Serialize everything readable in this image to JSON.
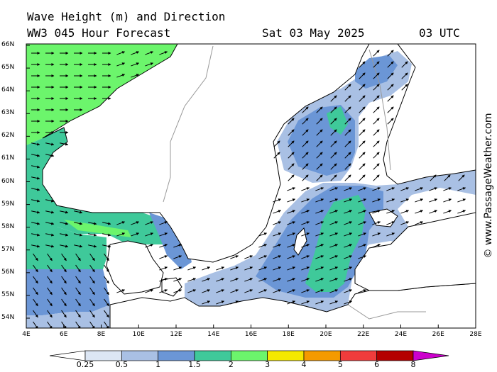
{
  "title_line1": "Wave Height (m) and Direction",
  "title_line2": "WW3 045 Hour Forecast",
  "date": "Sat 03 May 2025",
  "time": "03 UTC",
  "credit": "© www.PassageWeather.com",
  "lat_labels": [
    "66N",
    "65N",
    "64N",
    "63N",
    "62N",
    "61N",
    "60N",
    "59N",
    "58N",
    "57N",
    "56N",
    "55N",
    "54N"
  ],
  "lon_labels": [
    "4E",
    "6E",
    "8E",
    "10E",
    "12E",
    "14E",
    "16E",
    "18E",
    "20E",
    "22E",
    "24E",
    "26E",
    "28E"
  ],
  "colorbar": {
    "labels": [
      "0.25",
      "0.5",
      "1",
      "1.5",
      "2",
      "3",
      "4",
      "5",
      "6",
      "8"
    ],
    "colors": [
      "#ffffff",
      "#dce6f4",
      "#a9c0e4",
      "#6b96d6",
      "#3fc99a",
      "#6cf56c",
      "#f5e800",
      "#f59a00",
      "#f03c3c",
      "#b40000",
      "#cc00cc"
    ]
  },
  "colors": {
    "land": "#ffffff",
    "coast": "#000000",
    "border": "#999999",
    "wave_025_05": "#dce6f4",
    "wave_05_1": "#a9c0e4",
    "wave_1_15": "#6b96d6",
    "wave_15_2": "#3fc99a",
    "wave_2_3": "#6cf56c"
  }
}
